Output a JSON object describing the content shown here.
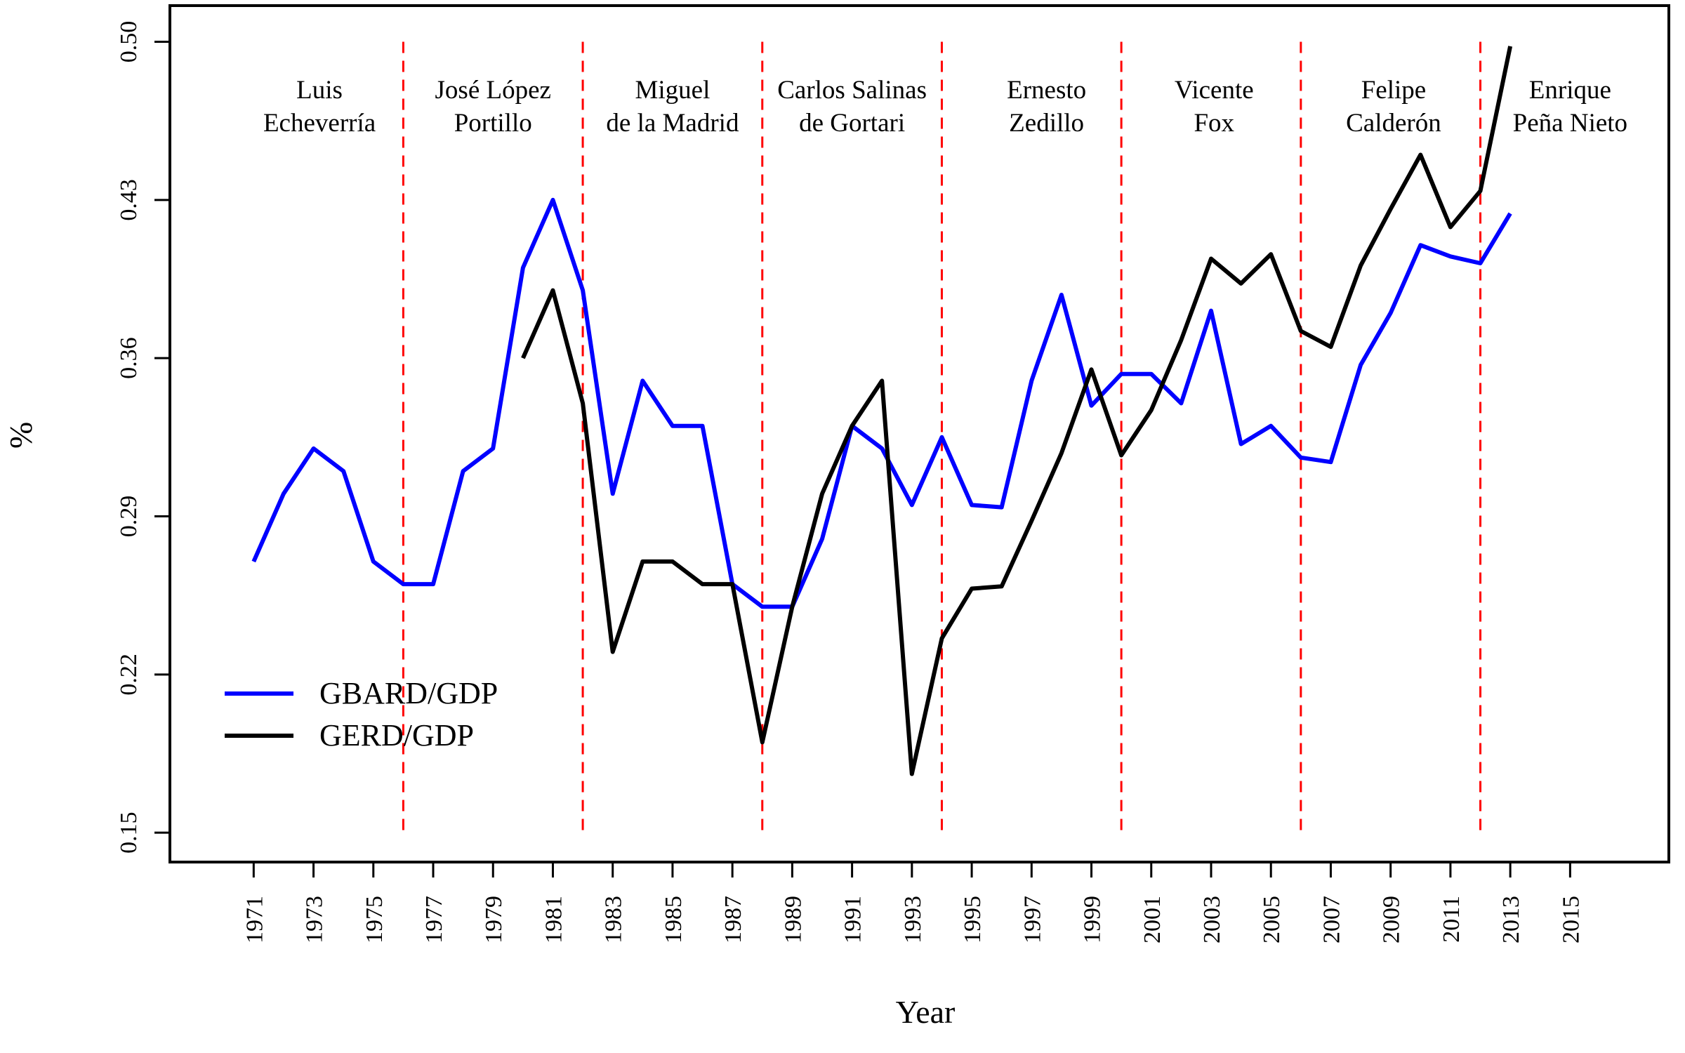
{
  "chart_data": {
    "type": "line",
    "xlabel": "Year",
    "ylabel": "%",
    "xlim": [
      1968.2,
      2018.3
    ],
    "ylim": [
      0.137,
      0.516
    ],
    "x_ticks": [
      "1971",
      "1973",
      "1975",
      "1977",
      "1979",
      "1981",
      "1983",
      "1985",
      "1987",
      "1989",
      "1991",
      "1993",
      "1995",
      "1997",
      "1999",
      "2001",
      "2003",
      "2005",
      "2007",
      "2009",
      "2011",
      "2013",
      "2015"
    ],
    "y_ticks": [
      "0.15",
      "0.22",
      "0.29",
      "0.36",
      "0.43",
      "0.50"
    ],
    "grid": false,
    "legend_position": "bottom-left",
    "series": [
      {
        "name": "GBARD/GDP",
        "color": "#0000ff",
        "points": [
          [
            1971,
            0.27
          ],
          [
            1972,
            0.3
          ],
          [
            1973,
            0.32
          ],
          [
            1974,
            0.31
          ],
          [
            1975,
            0.27
          ],
          [
            1976,
            0.26
          ],
          [
            1977,
            0.26
          ],
          [
            1978,
            0.31
          ],
          [
            1979,
            0.32
          ],
          [
            1980,
            0.4
          ],
          [
            1981,
            0.43
          ],
          [
            1982,
            0.39
          ],
          [
            1983,
            0.3
          ],
          [
            1984,
            0.35
          ],
          [
            1985,
            0.33
          ],
          [
            1986,
            0.33
          ],
          [
            1987,
            0.26
          ],
          [
            1988,
            0.25
          ],
          [
            1989,
            0.25
          ],
          [
            1990,
            0.28
          ],
          [
            1991,
            0.33
          ],
          [
            1992,
            0.32
          ],
          [
            1993,
            0.295
          ],
          [
            1994,
            0.325
          ],
          [
            1995,
            0.295
          ],
          [
            1996,
            0.294
          ],
          [
            1997,
            0.35
          ],
          [
            1998,
            0.388
          ],
          [
            1999,
            0.339
          ],
          [
            2000,
            0.353
          ],
          [
            2001,
            0.353
          ],
          [
            2002,
            0.34
          ],
          [
            2003,
            0.381
          ],
          [
            2004,
            0.322
          ],
          [
            2005,
            0.33
          ],
          [
            2006,
            0.316
          ],
          [
            2007,
            0.314
          ],
          [
            2008,
            0.357
          ],
          [
            2009,
            0.38
          ],
          [
            2010,
            0.41
          ],
          [
            2011,
            0.405
          ],
          [
            2012,
            0.402
          ],
          [
            2013,
            0.424
          ]
        ]
      },
      {
        "name": "GERD/GDP",
        "color": "#000000",
        "points": [
          [
            1980,
            0.36
          ],
          [
            1981,
            0.39
          ],
          [
            1982,
            0.34
          ],
          [
            1983,
            0.23
          ],
          [
            1984,
            0.27
          ],
          [
            1985,
            0.27
          ],
          [
            1986,
            0.26
          ],
          [
            1987,
            0.26
          ],
          [
            1988,
            0.19
          ],
          [
            1989,
            0.25
          ],
          [
            1990,
            0.3
          ],
          [
            1991,
            0.33
          ],
          [
            1992,
            0.35
          ],
          [
            1993,
            0.176
          ],
          [
            1994,
            0.236
          ],
          [
            1995,
            0.258
          ],
          [
            1996,
            0.259
          ],
          [
            1997,
            0.288
          ],
          [
            1998,
            0.318
          ],
          [
            1999,
            0.355
          ],
          [
            2000,
            0.317
          ],
          [
            2001,
            0.337
          ],
          [
            2002,
            0.368
          ],
          [
            2003,
            0.404
          ],
          [
            2004,
            0.393
          ],
          [
            2005,
            0.406
          ],
          [
            2006,
            0.372
          ],
          [
            2007,
            0.365
          ],
          [
            2008,
            0.401
          ],
          [
            2009,
            0.426
          ],
          [
            2010,
            0.45
          ],
          [
            2011,
            0.418
          ],
          [
            2012,
            0.434
          ],
          [
            2013,
            0.498
          ]
        ]
      }
    ],
    "period_dividers": [
      1976,
      1982,
      1988,
      1994,
      2000,
      2006,
      2012
    ],
    "divider_color": "#ff0000",
    "presidents": [
      {
        "line1": "Luis",
        "line2": "Echeverría",
        "x": 1973.2
      },
      {
        "line1": "José López",
        "line2": "Portillo",
        "x": 1979.0
      },
      {
        "line1": "Miguel",
        "line2": "de la Madrid",
        "x": 1985.0
      },
      {
        "line1": "Carlos Salinas",
        "line2": "de Gortari",
        "x": 1991.0
      },
      {
        "line1": "Ernesto",
        "line2": "Zedillo",
        "x": 1997.5
      },
      {
        "line1": "Vicente",
        "line2": "Fox",
        "x": 2003.1
      },
      {
        "line1": "Felipe",
        "line2": "Calderón",
        "x": 2009.1
      },
      {
        "line1": "Enrique",
        "line2": "Peña Nieto",
        "x": 2015.0
      }
    ]
  }
}
